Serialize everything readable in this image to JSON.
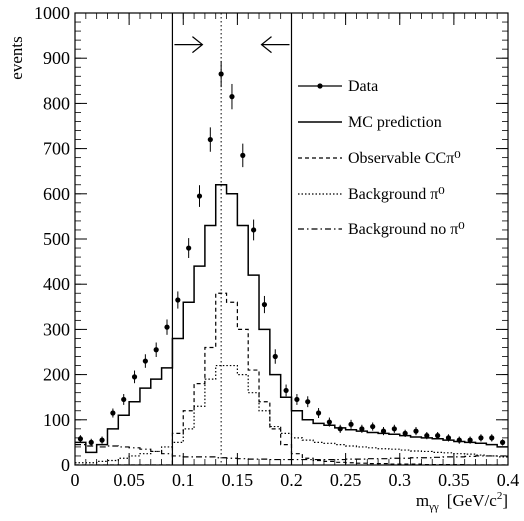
{
  "chart_data": {
    "type": "line",
    "ylabel": "events",
    "xlabel_main": "m",
    "xlabel_sub": "γγ",
    "xlabel_unit": "[GeV/c",
    "xlabel_unit_sup": "2",
    "xlabel_unit_end": "]",
    "xlim": [
      0,
      0.4
    ],
    "ylim": [
      0,
      1000
    ],
    "x_ticks": [
      0,
      0.05,
      0.1,
      0.15,
      0.2,
      0.25,
      0.3,
      0.35,
      0.4
    ],
    "x_tick_labels": [
      "0",
      "0.05",
      "0.1",
      "0.15",
      "0.2",
      "0.25",
      "0.3",
      "0.35",
      "0.4"
    ],
    "y_ticks": [
      0,
      100,
      200,
      300,
      400,
      500,
      600,
      700,
      800,
      900,
      1000
    ],
    "y_tick_labels": [
      "0",
      "100",
      "200",
      "300",
      "400",
      "500",
      "600",
      "700",
      "800",
      "900",
      "1000"
    ],
    "grid": false,
    "legend_position": "right",
    "selection_window": [
      0.09,
      0.2
    ],
    "peak_marker_x": 0.135,
    "bin_width": 0.01,
    "series": [
      {
        "name": "Data",
        "kind": "points",
        "x": [
          0.005,
          0.015,
          0.025,
          0.035,
          0.045,
          0.055,
          0.065,
          0.075,
          0.085,
          0.095,
          0.105,
          0.115,
          0.125,
          0.135,
          0.145,
          0.155,
          0.165,
          0.175,
          0.185,
          0.195,
          0.205,
          0.215,
          0.225,
          0.235,
          0.245,
          0.255,
          0.265,
          0.275,
          0.285,
          0.295,
          0.305,
          0.315,
          0.325,
          0.335,
          0.345,
          0.355,
          0.365,
          0.375,
          0.385,
          0.395
        ],
        "y": [
          58,
          50,
          55,
          115,
          145,
          195,
          230,
          255,
          305,
          365,
          480,
          595,
          720,
          865,
          815,
          685,
          520,
          355,
          240,
          165,
          145,
          140,
          115,
          95,
          80,
          90,
          80,
          85,
          75,
          80,
          70,
          75,
          65,
          65,
          60,
          55,
          55,
          60,
          60,
          50
        ],
        "err": [
          8,
          8,
          8,
          10,
          12,
          14,
          15,
          16,
          17,
          19,
          22,
          24,
          27,
          29,
          28,
          26,
          23,
          19,
          16,
          13,
          12,
          12,
          11,
          10,
          9,
          10,
          9,
          9,
          9,
          9,
          8,
          9,
          8,
          8,
          8,
          8,
          8,
          8,
          8,
          7
        ]
      },
      {
        "name": "MC prediction",
        "kind": "step",
        "values": [
          50,
          28,
          45,
          80,
          110,
          140,
          170,
          190,
          215,
          280,
          360,
          440,
          530,
          620,
          600,
          530,
          420,
          300,
          200,
          150,
          120,
          100,
          92,
          88,
          82,
          78,
          75,
          72,
          70,
          68,
          65,
          62,
          60,
          58,
          55,
          52,
          50,
          48,
          45,
          40
        ]
      },
      {
        "name": "Observable CCπ⁰",
        "kind": "step",
        "values": [
          0,
          0,
          0,
          0,
          0,
          0,
          0,
          0,
          0,
          70,
          120,
          180,
          260,
          380,
          360,
          300,
          210,
          140,
          80,
          45,
          25,
          15,
          10,
          8,
          6,
          5,
          4,
          3,
          3,
          2,
          2,
          2,
          1,
          1,
          1,
          1,
          0,
          0,
          0,
          0
        ]
      },
      {
        "name": "Background π⁰",
        "kind": "step",
        "values": [
          5,
          5,
          8,
          10,
          15,
          20,
          25,
          30,
          40,
          50,
          80,
          130,
          190,
          220,
          220,
          200,
          160,
          120,
          85,
          70,
          60,
          55,
          50,
          48,
          45,
          42,
          40,
          38,
          36,
          35,
          33,
          31,
          30,
          28,
          27,
          25,
          24,
          22,
          20,
          18
        ]
      },
      {
        "name": "Background no π⁰",
        "kind": "step",
        "values": [
          45,
          42,
          40,
          42,
          40,
          38,
          35,
          30,
          25,
          20,
          18,
          18,
          18,
          16,
          15,
          14,
          13,
          13,
          12,
          12,
          12,
          12,
          12,
          12,
          12,
          13,
          13,
          14,
          14,
          15,
          15,
          16,
          16,
          17,
          18,
          18,
          19,
          20,
          20,
          20
        ]
      }
    ]
  }
}
